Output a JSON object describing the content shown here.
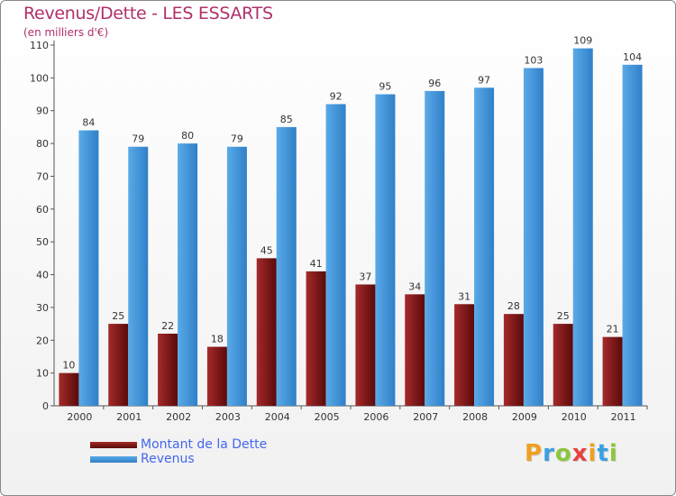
{
  "chart_data": {
    "type": "bar",
    "title": "Revenus/Dette - LES ESSARTS",
    "subtitle": "(en milliers d'€)",
    "categories": [
      "2000",
      "2001",
      "2002",
      "2003",
      "2004",
      "2005",
      "2006",
      "2007",
      "2008",
      "2009",
      "2010",
      "2011"
    ],
    "series": [
      {
        "name": "Montant de la Dette",
        "color": "#7a1010",
        "values": [
          10,
          25,
          22,
          18,
          45,
          41,
          37,
          34,
          31,
          28,
          25,
          21
        ]
      },
      {
        "name": "Revenus",
        "color": "#4ea3e6",
        "values": [
          84,
          79,
          80,
          79,
          85,
          92,
          95,
          96,
          97,
          103,
          109,
          104
        ]
      }
    ],
    "ylim": [
      0,
      110
    ],
    "yticks": [
      0,
      10,
      20,
      30,
      40,
      50,
      60,
      70,
      80,
      90,
      100,
      110
    ],
    "grid": false,
    "legend_position": "bottom-left"
  },
  "logo": {
    "letters": [
      "P",
      "r",
      "o",
      "x",
      "i",
      "t",
      "i"
    ],
    "colors": [
      "#f0a020",
      "#3aa0e0",
      "#8cc63f",
      "#e84040",
      "#f0a020",
      "#3aa0e0",
      "#8cc63f"
    ]
  }
}
